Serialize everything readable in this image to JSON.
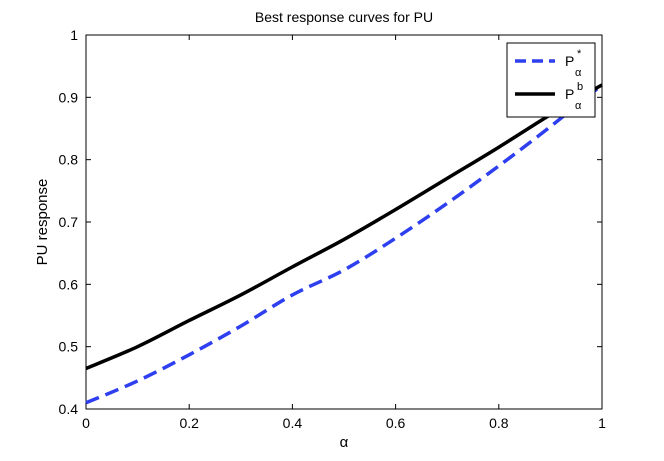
{
  "chart_data": {
    "type": "line",
    "title": "Best response curves for PU",
    "xlabel": "α",
    "ylabel": "PU response",
    "xlim": [
      0,
      1
    ],
    "ylim": [
      0.4,
      1
    ],
    "xticks": [
      0,
      0.2,
      0.4,
      0.6,
      0.8,
      1
    ],
    "xtick_labels": [
      "0",
      "0.2",
      "0.4",
      "0.6",
      "0.8",
      "1"
    ],
    "yticks": [
      0.4,
      0.5,
      0.6,
      0.7,
      0.8,
      0.9,
      1
    ],
    "ytick_labels": [
      "0.4",
      "0.5",
      "0.6",
      "0.7",
      "0.8",
      "0.9",
      "1"
    ],
    "grid": false,
    "legend_position": "top-right",
    "series": [
      {
        "name": "P*α",
        "legend_main": "P",
        "legend_sup": "*",
        "legend_sub": "α",
        "color": "#2e3ff0",
        "style": "dashed",
        "x": [
          0,
          0.1,
          0.2,
          0.3,
          0.4,
          0.5,
          0.6,
          0.7,
          0.8,
          0.9,
          1.0
        ],
        "y": [
          0.41,
          0.445,
          0.487,
          0.533,
          0.583,
          0.623,
          0.674,
          0.73,
          0.79,
          0.853,
          0.92
        ]
      },
      {
        "name": "Pbα",
        "legend_main": "P",
        "legend_sup": "b",
        "legend_sub": "α",
        "color": "#000000",
        "style": "solid",
        "x": [
          0,
          0.1,
          0.2,
          0.3,
          0.4,
          0.5,
          0.6,
          0.7,
          0.8,
          0.9,
          1.0
        ],
        "y": [
          0.465,
          0.5,
          0.542,
          0.583,
          0.628,
          0.672,
          0.72,
          0.77,
          0.82,
          0.872,
          0.92
        ]
      }
    ]
  }
}
